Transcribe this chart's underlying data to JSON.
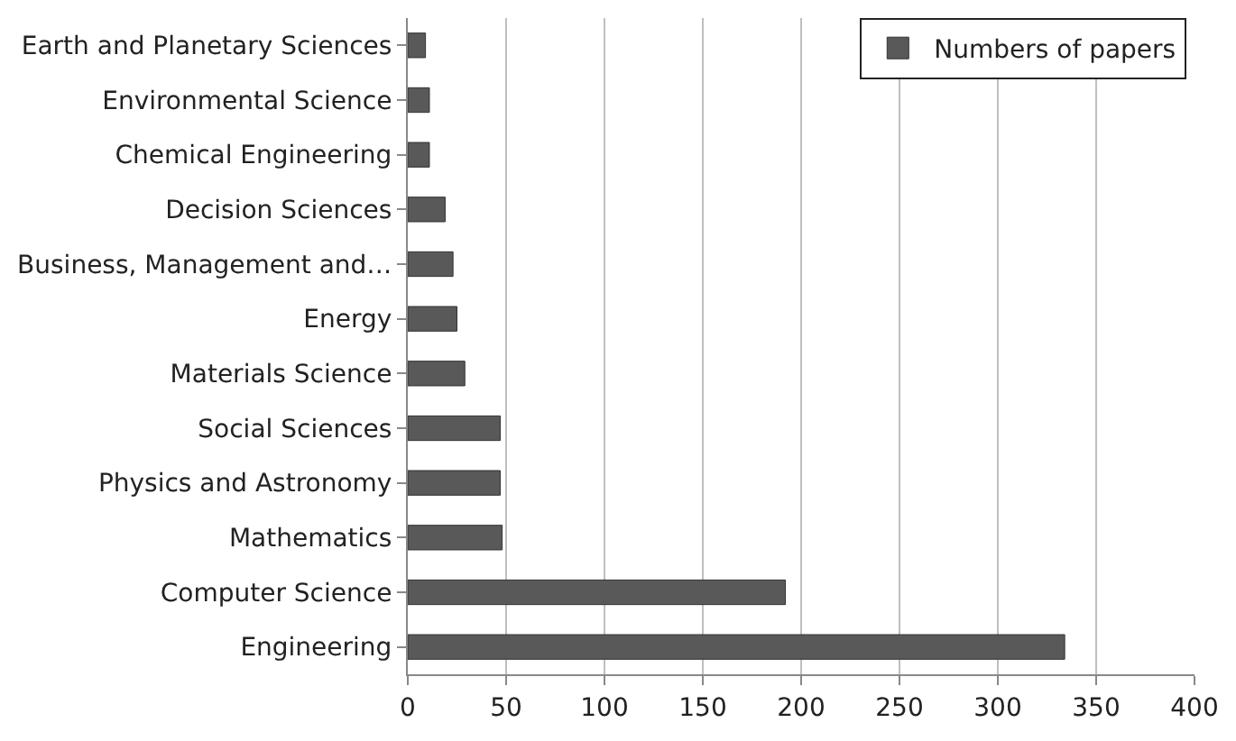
{
  "chart_data": {
    "type": "bar",
    "orientation": "horizontal",
    "categories": [
      "Earth and Planetary Sciences",
      "Environmental Science",
      "Chemical Engineering",
      "Decision Sciences",
      "Business, Management and…",
      "Energy",
      "Materials Science",
      "Social Sciences",
      "Physics and Astronomy",
      "Mathematics",
      "Computer Science",
      "Engineering"
    ],
    "series": [
      {
        "name": "Numbers of papers",
        "color": "#595959",
        "values": [
          9,
          11,
          11,
          19,
          23,
          25,
          29,
          47,
          47,
          48,
          192,
          334
        ]
      }
    ],
    "xlim": [
      0,
      400
    ],
    "xticks": [
      0,
      50,
      100,
      150,
      200,
      250,
      300,
      350,
      400
    ],
    "grid": "x",
    "legend": "top right"
  }
}
